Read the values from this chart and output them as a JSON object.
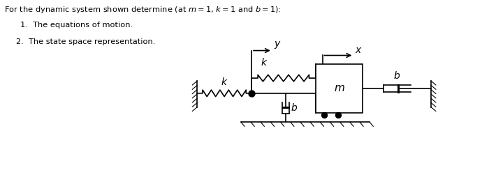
{
  "bg_color": "#ffffff",
  "line_color": "#000000",
  "figsize": [
    7.0,
    2.44
  ],
  "dpi": 100,
  "title": "For the dynamic system shown determine (at $m=1$, $k=1$ and $b=1$):",
  "item1": "1.  The equations of motion.",
  "item2": "2.  The state space representation."
}
